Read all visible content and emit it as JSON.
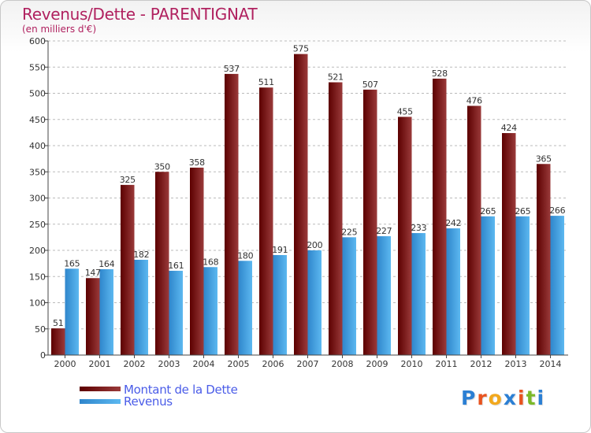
{
  "title": "Revenus/Dette - PARENTIGNAT",
  "subtitle": "(en milliers d'€)",
  "colors": {
    "dette_dark": "#5c0000",
    "dette_light": "#9a3a3a",
    "revenus_dark": "#2f86cc",
    "revenus_light": "#5cb8f0",
    "grid": "#bbbbbb",
    "axis_text": "#333333"
  },
  "legend": {
    "dette": "Montant de la Dette",
    "revenus": "Revenus"
  },
  "logo": {
    "letters": [
      "P",
      "r",
      "o",
      "x",
      "i",
      "t",
      "i"
    ],
    "colors": [
      "#2b7fd4",
      "#e8531f",
      "#f2a81d",
      "#2b7fd4",
      "#e8531f",
      "#7bb929",
      "#2b7fd4"
    ]
  },
  "chart_data": {
    "type": "bar",
    "title": "Revenus/Dette - PARENTIGNAT",
    "subtitle": "(en milliers d'€)",
    "xlabel": "",
    "ylabel": "",
    "categories": [
      "2000",
      "2001",
      "2002",
      "2003",
      "2004",
      "2005",
      "2006",
      "2007",
      "2008",
      "2009",
      "2010",
      "2011",
      "2012",
      "2013",
      "2014"
    ],
    "series": [
      {
        "name": "Montant de la Dette",
        "values": [
          51,
          147,
          325,
          350,
          358,
          537,
          511,
          575,
          521,
          507,
          455,
          528,
          476,
          424,
          365
        ]
      },
      {
        "name": "Revenus",
        "values": [
          165,
          164,
          182,
          161,
          168,
          180,
          191,
          200,
          225,
          227,
          233,
          242,
          265,
          265,
          266
        ]
      }
    ],
    "ylim": [
      0,
      600
    ],
    "yticks": [
      0,
      50,
      100,
      150,
      200,
      250,
      300,
      350,
      400,
      450,
      500,
      550,
      600
    ],
    "grid": true,
    "legend_position": "bottom-left"
  }
}
